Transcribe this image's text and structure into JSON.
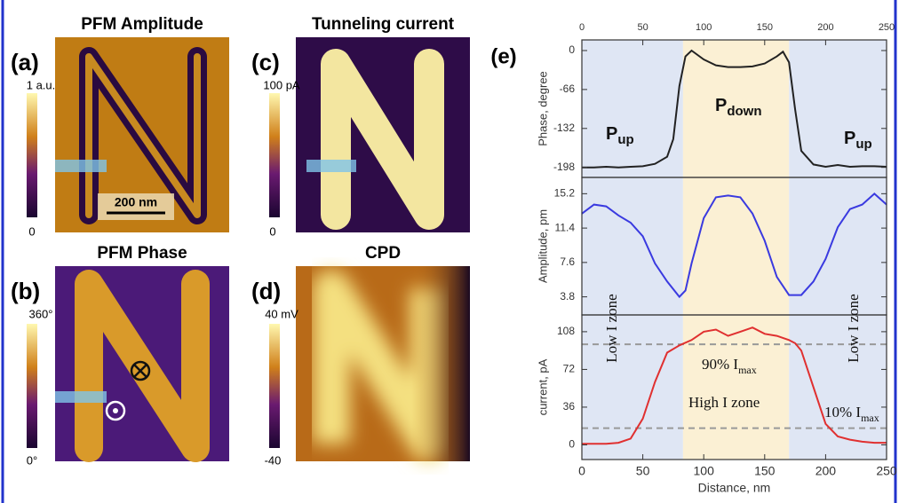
{
  "panels": [
    {
      "label": "(a)",
      "title": "PFM Amplitude",
      "colorbar_max": "1 a.u.",
      "colorbar_min": "0",
      "scale_bar": "200 nm"
    },
    {
      "label": "(b)",
      "title": "PFM Phase",
      "colorbar_max": "360°",
      "colorbar_min": "0°"
    },
    {
      "label": "(c)",
      "title": "Tunneling current",
      "colorbar_max": "100 pA",
      "colorbar_min": "0"
    },
    {
      "label": "(d)",
      "title": "CPD",
      "colorbar_max": "40 mV",
      "colorbar_min": "-40"
    }
  ],
  "figure_label": "(e)",
  "zones": [
    {
      "from": 0,
      "to": 83,
      "color": "#dfe6f4"
    },
    {
      "from": 83,
      "to": 170,
      "color": "#fbf0d4"
    },
    {
      "from": 170,
      "to": 250,
      "color": "#dfe6f4"
    }
  ],
  "chart_data": [
    {
      "type": "line",
      "y_label": "Phase, degree",
      "x": [
        0,
        10,
        20,
        30,
        40,
        50,
        60,
        70,
        75,
        80,
        85,
        90,
        100,
        110,
        120,
        130,
        140,
        150,
        160,
        165,
        170,
        175,
        180,
        190,
        200,
        210,
        220,
        230,
        240,
        250
      ],
      "series": [
        {
          "color": "#222222",
          "values": [
            -198,
            -198,
            -197,
            -198,
            -197,
            -196,
            -192,
            -180,
            -150,
            -60,
            -10,
            0,
            -15,
            -25,
            -28,
            -28,
            -27,
            -22,
            -10,
            -2,
            -20,
            -100,
            -170,
            -193,
            -197,
            -194,
            -197,
            -196,
            -196,
            -197
          ]
        }
      ],
      "xlim": [
        0,
        250
      ],
      "xticks": [
        0,
        50,
        100,
        150,
        200,
        250
      ],
      "ylim": [
        -215,
        18
      ],
      "yticks": [
        0,
        -66,
        -132,
        -198
      ],
      "annotations": [
        {
          "text": "P",
          "sub": "up"
        },
        {
          "text": "P",
          "sub": "down"
        },
        {
          "text": "P",
          "sub": "up"
        }
      ]
    },
    {
      "type": "line",
      "y_label": "Amplitude, pm",
      "x": [
        0,
        10,
        20,
        30,
        40,
        50,
        60,
        70,
        80,
        85,
        90,
        100,
        110,
        120,
        130,
        140,
        150,
        160,
        170,
        180,
        190,
        200,
        210,
        220,
        230,
        240,
        250
      ],
      "series": [
        {
          "color": "#3a3ae0",
          "values": [
            13.0,
            14.0,
            13.8,
            12.8,
            12.0,
            10.5,
            7.5,
            5.5,
            3.8,
            4.5,
            7.5,
            12.5,
            14.8,
            15.0,
            14.8,
            13.0,
            10.0,
            6.0,
            4.0,
            4.0,
            5.5,
            8.0,
            11.5,
            13.5,
            14.0,
            15.2,
            14.0
          ]
        }
      ],
      "xlim": [
        0,
        250
      ],
      "ylim": [
        1.8,
        17
      ],
      "yticks": [
        3.8,
        7.6,
        11.4,
        15.2
      ]
    },
    {
      "type": "line",
      "y_label": "current, pA",
      "x_label": "Distance, nm",
      "x": [
        0,
        10,
        20,
        30,
        40,
        50,
        60,
        70,
        80,
        90,
        100,
        110,
        120,
        130,
        140,
        150,
        160,
        170,
        175,
        180,
        190,
        200,
        210,
        220,
        230,
        240,
        250
      ],
      "series": [
        {
          "color": "#e03030",
          "values": [
            1,
            1,
            1,
            2,
            6,
            25,
            60,
            88,
            95,
            100,
            108,
            110,
            104,
            108,
            112,
            106,
            104,
            100,
            97,
            90,
            55,
            20,
            8,
            5,
            3,
            2,
            2
          ]
        }
      ],
      "xlim": [
        0,
        250
      ],
      "xticks": [
        0,
        50,
        100,
        150,
        200,
        250
      ],
      "ylim": [
        -14,
        124
      ],
      "yticks": [
        0,
        36,
        72,
        108
      ],
      "ref_lines": [
        96,
        16
      ],
      "annotations": [
        {
          "text": "Low I zone"
        },
        {
          "text": "Low I zone"
        },
        {
          "text": "90% I",
          "sub": "max"
        },
        {
          "text": "High I zone"
        },
        {
          "text": "10% I",
          "sub": "max"
        }
      ]
    }
  ]
}
